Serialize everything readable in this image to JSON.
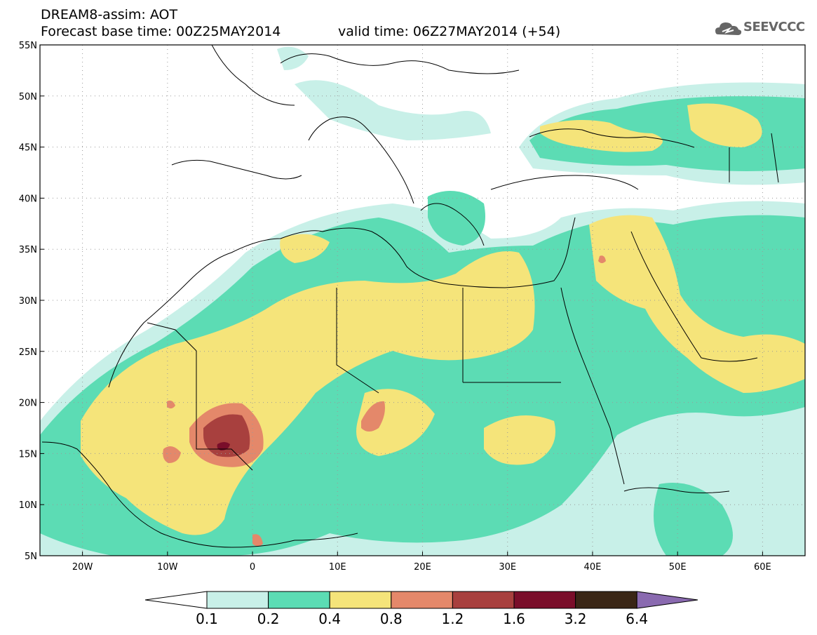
{
  "header": {
    "title_line1": "DREAM8-assim: AOT",
    "title_line2": "Forecast base time: 00Z25MAY2014",
    "valid_time": "valid time: 06Z27MAY2014 (+54)",
    "logo_text": "SEEVCCC"
  },
  "map": {
    "region": "North Africa, Europe and Middle East",
    "lon_range": [
      -25,
      65
    ],
    "lat_range": [
      5,
      55
    ],
    "lon_labels": [
      "20W",
      "10W",
      "0",
      "10E",
      "20E",
      "30E",
      "40E",
      "50E",
      "60E"
    ],
    "lat_labels": [
      "55N",
      "50N",
      "45N",
      "40N",
      "35N",
      "30N",
      "25N",
      "20N",
      "15N",
      "10N",
      "5N"
    ],
    "gridlines": true,
    "colors": {
      "aot_0.1_0.2": "#c8f0e8",
      "aot_0.2_0.4": "#5cdcb4",
      "aot_0.4_0.8": "#f5e47a",
      "aot_0.8_1.2": "#e4886a",
      "aot_1.2_1.6": "#a8403e",
      "aot_1.6_3.2": "#7a0e2a",
      "aot_3.2_6.4": "#3a2616",
      "aot_gt_6.4": "#8a6ab0"
    }
  },
  "colorbar": {
    "labels": [
      "0.1",
      "0.2",
      "0.4",
      "0.8",
      "1.2",
      "1.6",
      "3.2",
      "6.4"
    ]
  }
}
